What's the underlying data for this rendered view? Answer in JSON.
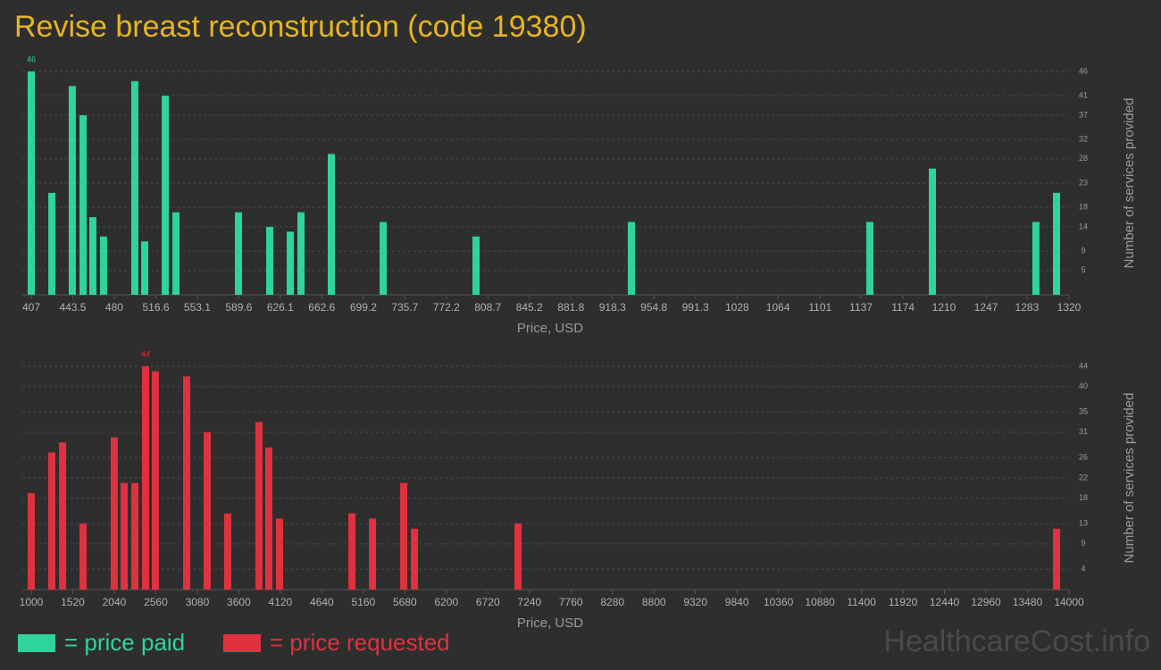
{
  "title": "Revise breast reconstruction (code 19380)",
  "watermark": "HealthcareCost.info",
  "chart_data": [
    {
      "type": "bar",
      "x_label": "Price, USD",
      "y_label": "Number of services provided",
      "xlim": [
        407,
        1320
      ],
      "xticks": [
        407,
        443.5,
        480,
        516.6,
        553.1,
        589.6,
        626.1,
        662.6,
        699.2,
        735.7,
        772.2,
        808.7,
        845.2,
        881.8,
        918.3,
        954.8,
        991.3,
        1028,
        1064,
        1101,
        1137,
        1174,
        1210,
        1247,
        1283,
        1320
      ],
      "ylim": [
        0,
        46
      ],
      "yticks": [
        5,
        9,
        14,
        18,
        23,
        28,
        32,
        37,
        41,
        46
      ],
      "grid": true,
      "x": [
        407,
        425.1,
        443.1,
        452.6,
        461.2,
        470.6,
        498.1,
        506.8,
        524.9,
        534.3,
        589.3,
        616.8,
        634.9,
        644.3,
        671.0,
        716.6,
        798.3,
        935.0,
        1144.8,
        1199.8,
        1290.9,
        1309
      ],
      "series": [
        {
          "name": "= price paid",
          "color": "#2fd39c",
          "values": [
            46,
            21,
            43,
            37,
            16,
            12,
            44,
            11,
            41,
            17,
            17,
            14,
            13,
            17,
            29,
            15,
            12,
            15,
            15,
            26,
            15,
            21
          ]
        }
      ]
    },
    {
      "type": "bar",
      "x_label": "Price, USD",
      "y_label": "Number of services provided",
      "xlim": [
        1000,
        14000
      ],
      "xticks": [
        1000,
        1520,
        2040,
        2560,
        3080,
        3600,
        4120,
        4640,
        5160,
        5680,
        6200,
        6720,
        7240,
        7760,
        8280,
        8800,
        9320,
        9840,
        10360,
        10880,
        11400,
        11920,
        12440,
        12960,
        13480,
        14000
      ],
      "ylim": [
        0,
        44
      ],
      "yticks": [
        4,
        9,
        13,
        18,
        22,
        26,
        31,
        35,
        40,
        44
      ],
      "grid": true,
      "x": [
        1000,
        1257,
        1392,
        1649,
        2040,
        2164,
        2298,
        2432,
        2555,
        2947,
        3204,
        3461,
        3853,
        3976,
        4110,
        5017,
        5274,
        5666,
        5800,
        7098,
        13844
      ],
      "series": [
        {
          "name": "= price requested",
          "color": "#e0313f",
          "values": [
            19,
            27,
            29,
            13,
            30,
            21,
            21,
            44,
            43,
            42,
            31,
            15,
            33,
            28,
            14,
            15,
            14,
            21,
            12,
            13,
            12
          ]
        }
      ]
    }
  ]
}
